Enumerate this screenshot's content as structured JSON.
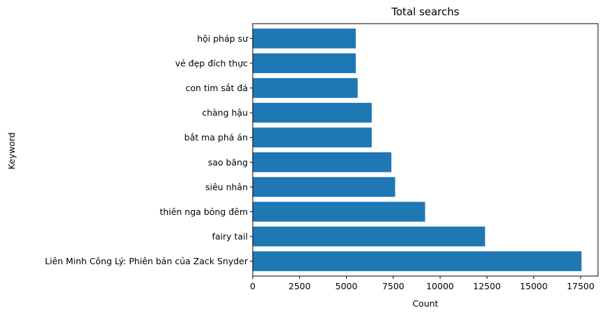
{
  "chart_data": {
    "type": "bar",
    "orientation": "horizontal",
    "title": "Total searchs",
    "xlabel": "Count",
    "ylabel": "Keyword",
    "categories": [
      "Liên Minh Công Lý: Phiên bản của Zack Snyder",
      "fairy tail",
      "thiên nga bóng đêm",
      "siêu nhân",
      "sao băng",
      "bắt ma phá án",
      "chàng hậu",
      "con tim sắt đá",
      "vẻ đẹp đích thực",
      "hội pháp sư"
    ],
    "values": [
      17550,
      12400,
      9200,
      7600,
      7400,
      6350,
      6350,
      5600,
      5500,
      5500
    ],
    "xlim": [
      0,
      18430
    ],
    "xticks": [
      0,
      2500,
      5000,
      7500,
      10000,
      12500,
      15000,
      17500
    ],
    "grid": false,
    "bar_color": "#1f77b4"
  }
}
